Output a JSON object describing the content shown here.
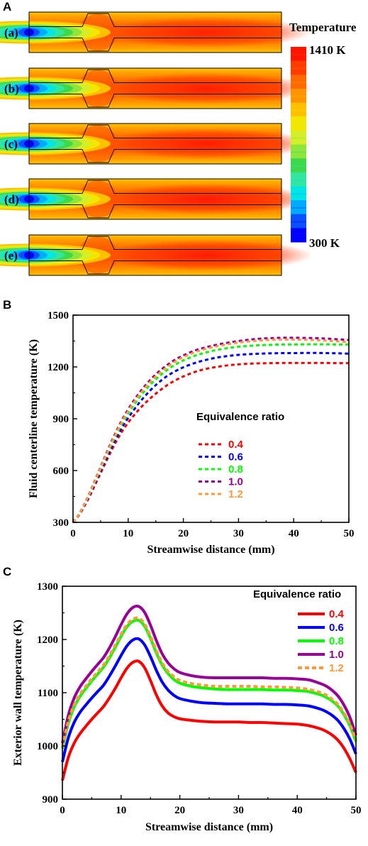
{
  "panels": {
    "a": "A",
    "b": "B",
    "c": "C"
  },
  "contour": {
    "cases": [
      "(a)",
      "(b)",
      "(c)",
      "(d)",
      "(e)"
    ],
    "colorbar_title": "Temperature",
    "colorbar_max": "1410 K",
    "colorbar_min": "300 K",
    "colormap": [
      "#0000ff",
      "#0a50ff",
      "#00aaff",
      "#00e5e5",
      "#33e6a0",
      "#3dd94d",
      "#8ee63c",
      "#d4ee2a",
      "#f3e600",
      "#ffc000",
      "#ff9400",
      "#ff6a00",
      "#ff3c00",
      "#ff1400"
    ],
    "hot_level": [
      0.82,
      0.86,
      0.89,
      0.93,
      0.9
    ]
  },
  "chart_data": [
    {
      "type": "line",
      "panel": "B",
      "title": "",
      "xlabel": "Streamwise distance (mm)",
      "ylabel": "Fluid centerline temperature (K)",
      "xlim": [
        0,
        50
      ],
      "ylim": [
        300,
        1500
      ],
      "xticks": [
        "0",
        "10",
        "20",
        "30",
        "40",
        "50"
      ],
      "yticks": [
        "300",
        "600",
        "900",
        "1200",
        "1500"
      ],
      "grid": false,
      "legend_title": "Equivalence ratio",
      "legend_position": "center-right",
      "line_style": "dashed",
      "x": [
        0,
        1,
        2,
        3,
        4,
        5,
        6,
        7,
        8,
        9,
        10,
        11,
        12,
        13,
        14,
        15,
        16,
        17,
        18,
        19,
        20,
        22,
        24,
        26,
        28,
        30,
        32,
        34,
        36,
        38,
        40,
        42,
        44,
        46,
        48,
        50
      ],
      "series": [
        {
          "name": "0.4",
          "color": "#ff0000",
          "values": [
            300,
            338,
            390,
            450,
            517,
            585,
            652,
            718,
            778,
            832,
            878,
            918,
            955,
            988,
            1018,
            1045,
            1070,
            1093,
            1113,
            1130,
            1145,
            1170,
            1188,
            1200,
            1209,
            1215,
            1219,
            1221,
            1222,
            1223,
            1223,
            1223,
            1223,
            1223,
            1222,
            1222
          ]
        },
        {
          "name": "0.6",
          "color": "#0000ff",
          "values": [
            300,
            340,
            395,
            458,
            528,
            598,
            668,
            736,
            799,
            856,
            905,
            950,
            992,
            1030,
            1064,
            1095,
            1122,
            1146,
            1166,
            1183,
            1198,
            1222,
            1240,
            1254,
            1263,
            1270,
            1274,
            1277,
            1279,
            1280,
            1280,
            1281,
            1281,
            1280,
            1279,
            1277
          ]
        },
        {
          "name": "0.8",
          "color": "#00ff00",
          "values": [
            300,
            342,
            399,
            465,
            537,
            610,
            683,
            753,
            818,
            877,
            930,
            978,
            1022,
            1061,
            1097,
            1128,
            1156,
            1181,
            1203,
            1222,
            1238,
            1264,
            1283,
            1298,
            1309,
            1317,
            1322,
            1326,
            1328,
            1330,
            1330,
            1331,
            1331,
            1331,
            1330,
            1330
          ]
        },
        {
          "name": "1.0",
          "color": "#990099",
          "values": [
            300,
            343,
            402,
            470,
            545,
            621,
            697,
            770,
            838,
            900,
            955,
            1005,
            1049,
            1089,
            1125,
            1157,
            1185,
            1210,
            1232,
            1251,
            1267,
            1294,
            1313,
            1328,
            1340,
            1350,
            1358,
            1364,
            1367,
            1369,
            1369,
            1368,
            1367,
            1364,
            1360,
            1356
          ]
        },
        {
          "name": "1.2",
          "color": "#ff9933",
          "values": [
            300,
            342,
            400,
            467,
            541,
            616,
            690,
            762,
            829,
            890,
            944,
            993,
            1037,
            1077,
            1113,
            1145,
            1173,
            1198,
            1220,
            1240,
            1257,
            1284,
            1304,
            1319,
            1331,
            1341,
            1348,
            1353,
            1357,
            1358,
            1358,
            1357,
            1355,
            1352,
            1348,
            1344
          ]
        }
      ]
    },
    {
      "type": "line",
      "panel": "C",
      "title": "",
      "xlabel": "Streamwise distance (mm)",
      "ylabel": "Exterior wall temperature (K)",
      "xlim": [
        0,
        50
      ],
      "ylim": [
        900,
        1300
      ],
      "xticks": [
        "0",
        "10",
        "20",
        "30",
        "40",
        "50"
      ],
      "yticks": [
        "900",
        "1000",
        "1100",
        "1200",
        "1300"
      ],
      "grid": false,
      "legend_title": "Equivalence ratio",
      "legend_position": "top-right",
      "x": [
        0,
        1,
        2,
        3,
        4,
        5,
        6,
        7,
        8,
        9,
        10,
        11,
        12,
        13,
        14,
        15,
        16,
        17,
        18,
        19,
        20,
        22,
        24,
        26,
        28,
        30,
        32,
        34,
        36,
        38,
        40,
        42,
        44,
        45,
        46,
        47,
        48,
        49,
        50
      ],
      "series": [
        {
          "name": "0.4",
          "color": "#ff0000",
          "line_style": "solid",
          "values": [
            935,
            978,
            1005,
            1023,
            1037,
            1050,
            1062,
            1074,
            1090,
            1108,
            1128,
            1146,
            1157,
            1159,
            1147,
            1123,
            1096,
            1075,
            1062,
            1055,
            1051,
            1048,
            1046,
            1045,
            1045,
            1045,
            1044,
            1044,
            1043,
            1042,
            1041,
            1038,
            1032,
            1027,
            1020,
            1010,
            995,
            975,
            950
          ]
        },
        {
          "name": "0.6",
          "color": "#0000ff",
          "line_style": "solid",
          "values": [
            970,
            1015,
            1044,
            1063,
            1077,
            1090,
            1102,
            1114,
            1131,
            1150,
            1170,
            1188,
            1199,
            1201,
            1190,
            1168,
            1142,
            1120,
            1105,
            1095,
            1089,
            1084,
            1081,
            1080,
            1079,
            1079,
            1079,
            1079,
            1078,
            1078,
            1077,
            1075,
            1069,
            1064,
            1057,
            1047,
            1032,
            1012,
            985
          ]
        },
        {
          "name": "0.8",
          "color": "#00ff00",
          "line_style": "solid",
          "values": [
            995,
            1042,
            1073,
            1093,
            1108,
            1122,
            1135,
            1148,
            1165,
            1185,
            1206,
            1224,
            1234,
            1236,
            1225,
            1202,
            1175,
            1152,
            1136,
            1125,
            1118,
            1112,
            1109,
            1107,
            1106,
            1106,
            1106,
            1106,
            1105,
            1105,
            1104,
            1102,
            1096,
            1091,
            1084,
            1074,
            1058,
            1037,
            1008
          ]
        },
        {
          "name": "1.0",
          "color": "#990099",
          "line_style": "solid",
          "values": [
            1005,
            1057,
            1090,
            1111,
            1126,
            1140,
            1153,
            1166,
            1184,
            1205,
            1228,
            1248,
            1260,
            1262,
            1251,
            1227,
            1198,
            1173,
            1156,
            1145,
            1138,
            1132,
            1129,
            1128,
            1128,
            1128,
            1128,
            1128,
            1127,
            1127,
            1126,
            1124,
            1117,
            1112,
            1104,
            1093,
            1076,
            1053,
            1020
          ]
        },
        {
          "name": "1.2",
          "color": "#ff9933",
          "line_style": "dashed",
          "values": [
            998,
            1046,
            1077,
            1097,
            1112,
            1126,
            1139,
            1152,
            1169,
            1189,
            1210,
            1228,
            1238,
            1240,
            1229,
            1206,
            1179,
            1156,
            1140,
            1130,
            1123,
            1117,
            1114,
            1112,
            1112,
            1112,
            1112,
            1111,
            1111,
            1110,
            1109,
            1106,
            1100,
            1095,
            1087,
            1077,
            1061,
            1040,
            1010
          ]
        }
      ]
    }
  ]
}
